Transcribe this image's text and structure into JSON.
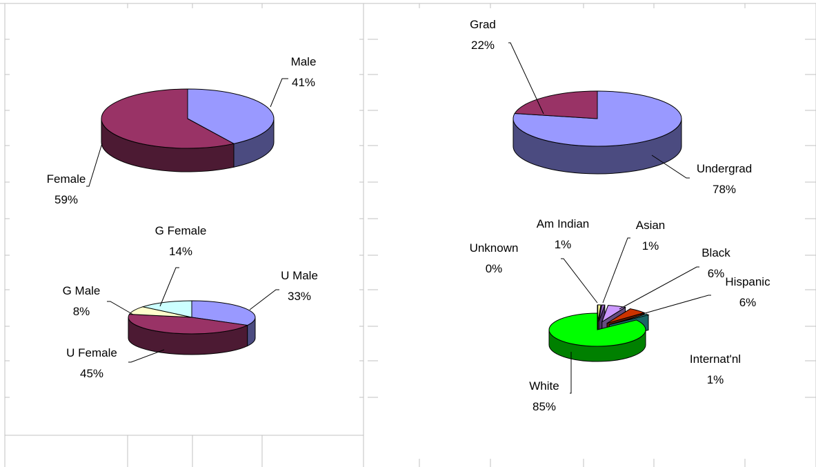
{
  "chart_data": [
    {
      "type": "pie",
      "slices": [
        {
          "label": "Male",
          "value": 41,
          "percent_label": "41%",
          "top": "#9999ff",
          "side": "#4b4b80"
        },
        {
          "label": "Female",
          "value": 59,
          "percent_label": "59%",
          "top": "#993366",
          "side": "#4c1a33"
        }
      ]
    },
    {
      "type": "pie",
      "slices": [
        {
          "label": "Undergrad",
          "value": 78,
          "percent_label": "78%",
          "top": "#9999ff",
          "side": "#4b4b80"
        },
        {
          "label": "Grad",
          "value": 22,
          "percent_label": "22%",
          "top": "#993366",
          "side": "#4c1a33"
        }
      ]
    },
    {
      "type": "pie",
      "slices": [
        {
          "label": "U Male",
          "value": 33,
          "percent_label": "33%",
          "top": "#9999ff",
          "side": "#4b4b80"
        },
        {
          "label": "U Female",
          "value": 45,
          "percent_label": "45%",
          "top": "#993366",
          "side": "#4c1a33"
        },
        {
          "label": "G Male",
          "value": 8,
          "percent_label": "8%",
          "top": "#ffffcc",
          "side": "#99997a"
        },
        {
          "label": "G Female",
          "value": 14,
          "percent_label": "14%",
          "top": "#ccffff",
          "side": "#7a9999"
        }
      ]
    },
    {
      "type": "pie",
      "exploded": true,
      "slices": [
        {
          "label": "Am Indian",
          "value": 1,
          "percent_label": "1%",
          "top": "#ffff99",
          "side": "#808040"
        },
        {
          "label": "Asian",
          "value": 1,
          "percent_label": "1%",
          "top": "#9966cc",
          "side": "#4b3366"
        },
        {
          "label": "Black",
          "value": 6,
          "percent_label": "6%",
          "top": "#cc99ff",
          "side": "#664d80"
        },
        {
          "label": "Hispanic",
          "value": 6,
          "percent_label": "6%",
          "top": "#cc3300",
          "side": "#661a00"
        },
        {
          "label": "Internat'nl",
          "value": 1,
          "percent_label": "1%",
          "top": "#33cccc",
          "side": "#1a6666"
        },
        {
          "label": "White",
          "value": 85,
          "percent_label": "85%",
          "top": "#00ff00",
          "side": "#008000"
        },
        {
          "label": "Unknown",
          "value": 0,
          "percent_label": "0%",
          "top": "#993300",
          "side": "#4c1900"
        }
      ]
    }
  ]
}
